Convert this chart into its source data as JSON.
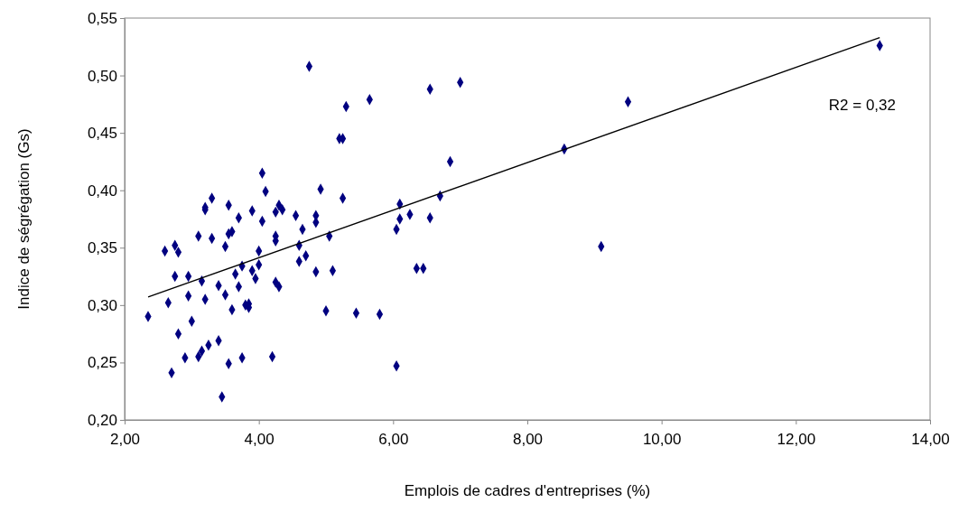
{
  "chart_data": {
    "type": "scatter",
    "xlabel": "Emplois de cadres d'entreprises (%)",
    "ylabel": "Indice de ségrégation (Gs)",
    "xlim": [
      2,
      14
    ],
    "ylim": [
      0.2,
      0.55
    ],
    "xticks": [
      {
        "value": 2,
        "label": "2,00"
      },
      {
        "value": 4,
        "label": "4,00"
      },
      {
        "value": 6,
        "label": "6,00"
      },
      {
        "value": 8,
        "label": "8,00"
      },
      {
        "value": 10,
        "label": "10,00"
      },
      {
        "value": 12,
        "label": "12,00"
      },
      {
        "value": 14,
        "label": "14,00"
      }
    ],
    "yticks": [
      {
        "value": 0.2,
        "label": "0,20"
      },
      {
        "value": 0.25,
        "label": "0,25"
      },
      {
        "value": 0.3,
        "label": "0,30"
      },
      {
        "value": 0.35,
        "label": "0,35"
      },
      {
        "value": 0.4,
        "label": "0,40"
      },
      {
        "value": 0.45,
        "label": "0,45"
      },
      {
        "value": 0.5,
        "label": "0,50"
      },
      {
        "value": 0.55,
        "label": "0,55"
      }
    ],
    "grid": false,
    "marker": "diamond",
    "annotations": [
      "R2 = 0,32"
    ],
    "series": [
      {
        "color": "#000080",
        "x": [
          2.35,
          2.6,
          2.65,
          2.7,
          2.75,
          2.75,
          2.8,
          2.8,
          2.9,
          2.95,
          2.95,
          3.0,
          3.1,
          3.1,
          3.15,
          3.15,
          3.2,
          3.2,
          3.2,
          3.25,
          3.3,
          3.3,
          3.4,
          3.4,
          3.45,
          3.5,
          3.5,
          3.55,
          3.55,
          3.55,
          3.6,
          3.6,
          3.65,
          3.7,
          3.7,
          3.75,
          3.75,
          3.8,
          3.85,
          3.85,
          3.9,
          3.9,
          3.95,
          4.0,
          4.0,
          4.05,
          4.05,
          4.1,
          4.2,
          4.25,
          4.25,
          4.25,
          4.25,
          4.3,
          4.3,
          4.35,
          4.55,
          4.6,
          4.6,
          4.65,
          4.7,
          4.75,
          4.85,
          4.85,
          4.85,
          4.92,
          5.0,
          5.05,
          5.1,
          5.2,
          5.25,
          5.25,
          5.3,
          5.45,
          5.65,
          5.8,
          6.05,
          6.05,
          6.1,
          6.1,
          6.25,
          6.35,
          6.45,
          6.55,
          6.55,
          6.7,
          6.85,
          7.0,
          8.55,
          9.1,
          9.5,
          13.25
        ],
        "values": [
          0.29,
          0.347,
          0.302,
          0.241,
          0.352,
          0.325,
          0.275,
          0.346,
          0.254,
          0.325,
          0.308,
          0.286,
          0.36,
          0.255,
          0.321,
          0.26,
          0.383,
          0.385,
          0.305,
          0.265,
          0.393,
          0.358,
          0.317,
          0.269,
          0.22,
          0.351,
          0.309,
          0.362,
          0.387,
          0.249,
          0.364,
          0.296,
          0.327,
          0.376,
          0.316,
          0.254,
          0.334,
          0.3,
          0.301,
          0.298,
          0.382,
          0.33,
          0.323,
          0.335,
          0.347,
          0.373,
          0.415,
          0.399,
          0.255,
          0.381,
          0.36,
          0.356,
          0.32,
          0.316,
          0.387,
          0.383,
          0.378,
          0.352,
          0.338,
          0.366,
          0.343,
          0.508,
          0.378,
          0.372,
          0.329,
          0.401,
          0.295,
          0.36,
          0.33,
          0.445,
          0.445,
          0.393,
          0.473,
          0.293,
          0.479,
          0.292,
          0.366,
          0.247,
          0.375,
          0.388,
          0.379,
          0.332,
          0.332,
          0.488,
          0.376,
          0.395,
          0.425,
          0.494,
          0.436,
          0.351,
          0.477,
          0.526
        ]
      },
      {
        "type": "line",
        "color": "#000000",
        "marker": "none",
        "line_style": "solid",
        "x": [
          2.35,
          13.25
        ],
        "values": [
          0.307,
          0.533
        ]
      }
    ]
  }
}
